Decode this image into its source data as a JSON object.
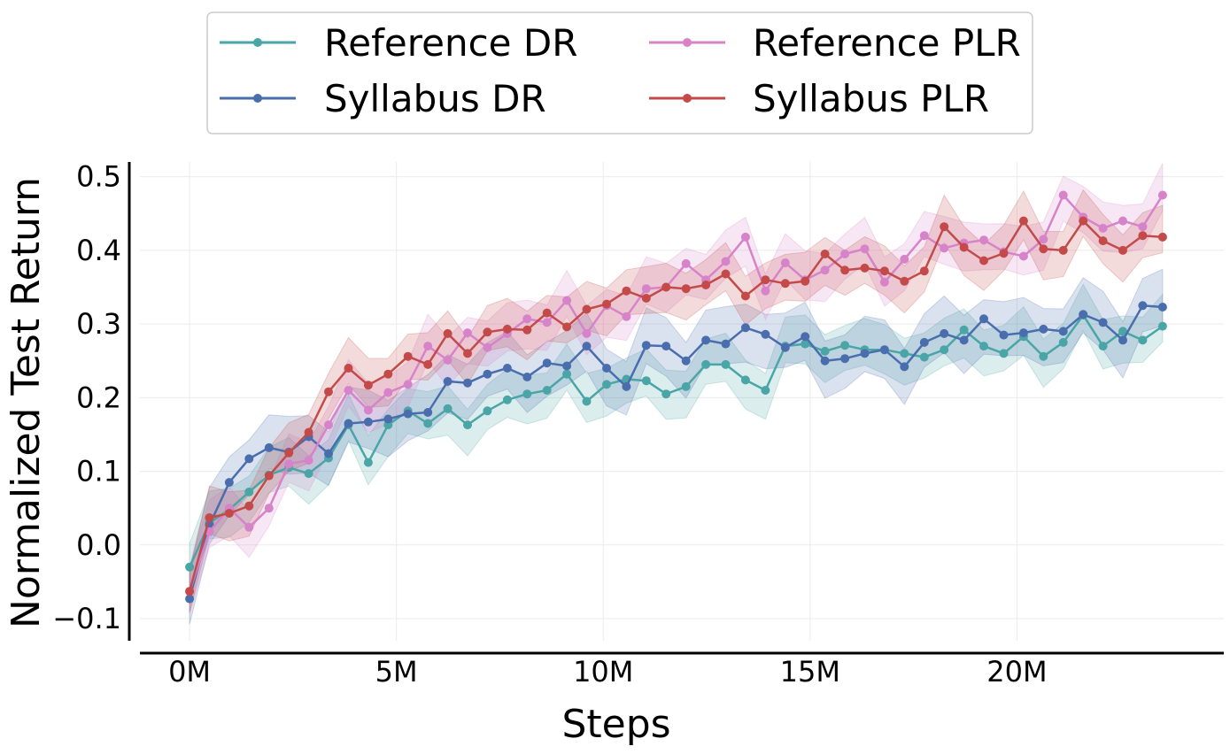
{
  "chart_data": {
    "type": "line",
    "xlabel": "Steps",
    "ylabel": "Normalized Test Return",
    "xlim": [
      -1.2,
      25.0
    ],
    "ylim": [
      -0.13,
      0.52
    ],
    "xticks": [
      0,
      5,
      10,
      15,
      20
    ],
    "xtick_labels": [
      "0M",
      "5M",
      "10M",
      "15M",
      "20M"
    ],
    "yticks": [
      -0.1,
      0.0,
      0.1,
      0.2,
      0.3,
      0.4,
      0.5
    ],
    "ytick_labels": [
      "−0.1",
      "0.0",
      "0.1",
      "0.2",
      "0.3",
      "0.4",
      "0.5"
    ],
    "grid": true,
    "legend_position": "top-center",
    "x_step_millions": 0.48,
    "series": [
      {
        "name": "Reference DR",
        "color": "#4aa6a6",
        "band": 0.032,
        "values": [
          -0.03,
          0.03,
          0.048,
          0.072,
          0.095,
          0.105,
          0.097,
          0.118,
          0.163,
          0.112,
          0.163,
          0.182,
          0.165,
          0.185,
          0.163,
          0.182,
          0.197,
          0.205,
          0.21,
          0.232,
          0.195,
          0.218,
          0.225,
          0.223,
          0.205,
          0.215,
          0.245,
          0.245,
          0.224,
          0.21,
          0.27,
          0.273,
          0.263,
          0.271,
          0.265,
          0.265,
          0.26,
          0.255,
          0.265,
          0.292,
          0.27,
          0.26,
          0.283,
          0.256,
          0.275,
          0.312,
          0.27,
          0.29,
          0.278,
          0.297
        ]
      },
      {
        "name": "Syllabus DR",
        "color": "#4a6ead",
        "band": 0.038,
        "values": [
          -0.073,
          0.027,
          0.085,
          0.117,
          0.132,
          0.126,
          0.147,
          0.124,
          0.165,
          0.167,
          0.171,
          0.178,
          0.18,
          0.222,
          0.22,
          0.232,
          0.24,
          0.228,
          0.247,
          0.243,
          0.27,
          0.24,
          0.215,
          0.271,
          0.27,
          0.25,
          0.278,
          0.273,
          0.295,
          0.286,
          0.268,
          0.283,
          0.25,
          0.253,
          0.26,
          0.265,
          0.242,
          0.275,
          0.287,
          0.278,
          0.307,
          0.285,
          0.288,
          0.293,
          0.29,
          0.313,
          0.302,
          0.278,
          0.325,
          0.323
        ]
      },
      {
        "name": "Reference PLR",
        "color": "#d683c9",
        "band": 0.032,
        "values": [
          -0.063,
          0.018,
          0.05,
          0.024,
          0.05,
          0.11,
          0.115,
          0.163,
          0.21,
          0.183,
          0.207,
          0.218,
          0.27,
          0.251,
          0.288,
          0.268,
          0.287,
          0.307,
          0.302,
          0.332,
          0.287,
          0.325,
          0.31,
          0.348,
          0.35,
          0.382,
          0.36,
          0.385,
          0.418,
          0.345,
          0.383,
          0.36,
          0.373,
          0.395,
          0.402,
          0.357,
          0.388,
          0.42,
          0.403,
          0.41,
          0.414,
          0.398,
          0.392,
          0.415,
          0.475,
          0.445,
          0.43,
          0.44,
          0.432,
          0.475
        ]
      },
      {
        "name": "Syllabus PLR",
        "color": "#c44a4a",
        "band": 0.032,
        "values": [
          -0.063,
          0.037,
          0.043,
          0.053,
          0.094,
          0.125,
          0.153,
          0.208,
          0.24,
          0.217,
          0.232,
          0.256,
          0.245,
          0.287,
          0.26,
          0.289,
          0.293,
          0.292,
          0.315,
          0.296,
          0.32,
          0.327,
          0.345,
          0.335,
          0.35,
          0.348,
          0.353,
          0.368,
          0.338,
          0.36,
          0.355,
          0.358,
          0.395,
          0.373,
          0.376,
          0.372,
          0.358,
          0.372,
          0.432,
          0.404,
          0.386,
          0.396,
          0.44,
          0.402,
          0.4,
          0.44,
          0.413,
          0.4,
          0.42,
          0.418
        ]
      }
    ]
  },
  "legend": {
    "items": [
      {
        "label": "Reference DR",
        "color": "#4aa6a6"
      },
      {
        "label": "Syllabus DR",
        "color": "#4a6ead"
      },
      {
        "label": "Reference PLR",
        "color": "#d683c9"
      },
      {
        "label": "Syllabus PLR",
        "color": "#c44a4a"
      }
    ]
  }
}
